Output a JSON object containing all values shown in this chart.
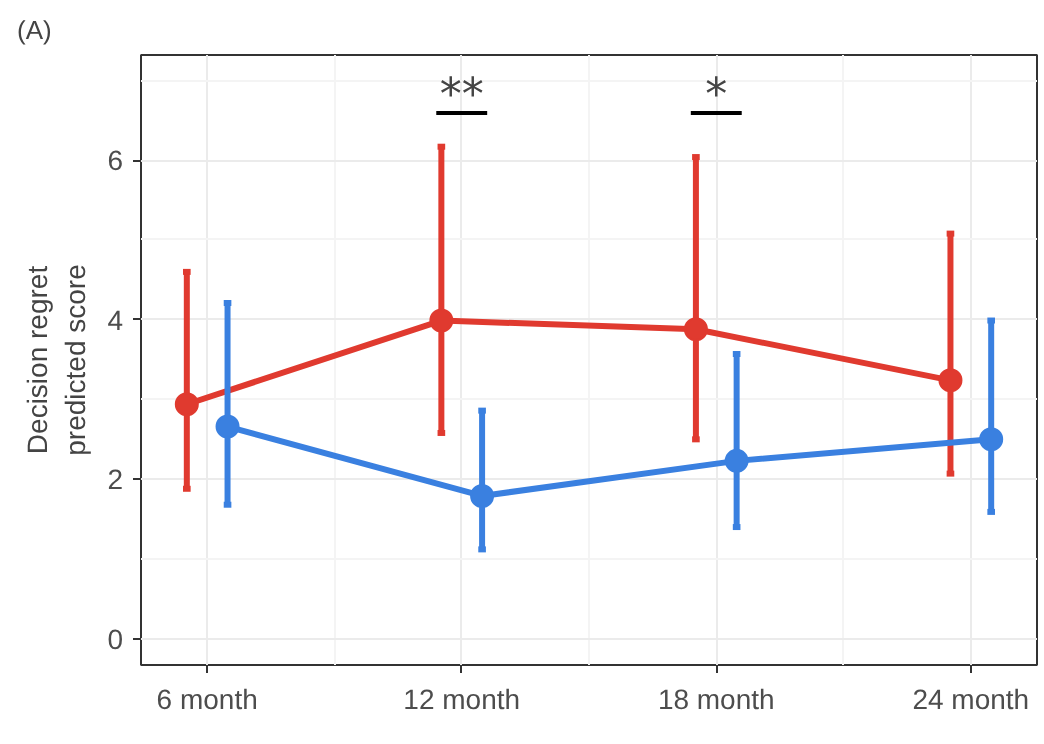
{
  "chart_data": {
    "type": "line",
    "title": "(A)",
    "ylabel": "Decision regret\npredicted score",
    "categories": [
      "6 month",
      "12 month",
      "18 month",
      "24 month"
    ],
    "series": [
      {
        "color": "#e03a2f",
        "values": [
          2.94,
          3.99,
          3.88,
          3.24
        ],
        "errors": [
          [
            1.88,
            4.6
          ],
          [
            2.58,
            6.17
          ],
          [
            2.5,
            6.04
          ],
          [
            2.07,
            5.08
          ]
        ]
      },
      {
        "color": "#3a80e0",
        "values": [
          2.66,
          1.79,
          2.23,
          2.5
        ],
        "errors": [
          [
            1.68,
            4.21
          ],
          [
            1.12,
            2.86
          ],
          [
            1.4,
            3.57
          ],
          [
            1.59,
            3.99
          ]
        ]
      }
    ],
    "ylim": [
      -0.33,
      7.32
    ],
    "yticks": [
      0,
      2,
      4,
      6
    ],
    "grid": true,
    "marker": "circle",
    "line_style": "solid",
    "annotations": [
      "**",
      "*"
    ]
  }
}
